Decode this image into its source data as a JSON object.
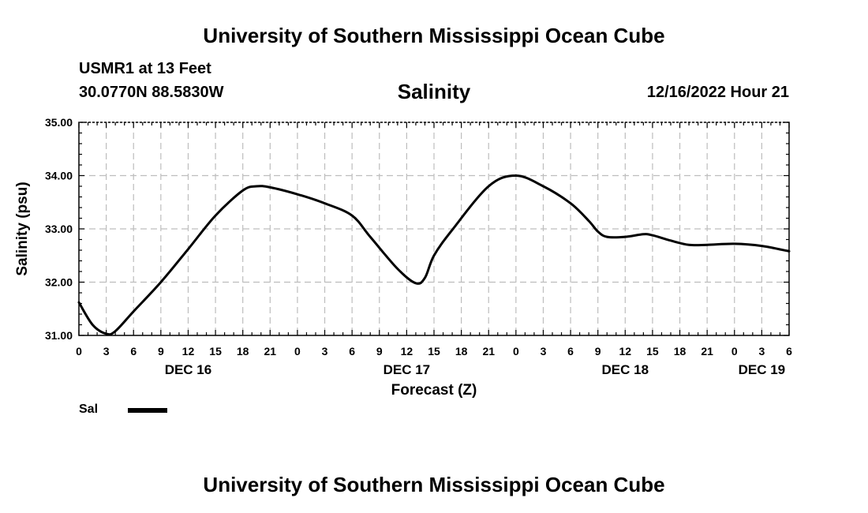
{
  "header": {
    "title": "University of Southern Mississippi Ocean Cube",
    "station": "USMR1 at 13 Feet",
    "coords": "30.0770N  88.5830W",
    "chart_title": "Salinity",
    "forecast_time": "12/16/2022 Hour 21"
  },
  "footer": {
    "title": "University of Southern Mississippi Ocean Cube"
  },
  "legend": {
    "label": "Sal",
    "color": "#000000"
  },
  "chart_data": {
    "type": "line",
    "title": "Salinity",
    "xlabel": "Forecast (Z)",
    "ylabel": "Salinity (psu)",
    "ylim": [
      31.0,
      35.0
    ],
    "yticks": [
      "31.00",
      "32.00",
      "33.00",
      "34.00",
      "35.00"
    ],
    "x_unit": "hours from DEC 16 00Z",
    "xlim": [
      0,
      78
    ],
    "x_tick_labels": [
      "0",
      "3",
      "6",
      "9",
      "12",
      "15",
      "18",
      "21",
      "0",
      "3",
      "6",
      "9",
      "12",
      "15",
      "18",
      "21",
      "0",
      "3",
      "6",
      "9",
      "12",
      "15",
      "18",
      "21",
      "0",
      "3",
      "6"
    ],
    "x_day_labels": [
      {
        "hour": 12,
        "label": "DEC 16"
      },
      {
        "hour": 36,
        "label": "DEC 17"
      },
      {
        "hour": 60,
        "label": "DEC 18"
      },
      {
        "hour": 75,
        "label": "DEC 19"
      }
    ],
    "grid": true,
    "series": [
      {
        "name": "Sal",
        "x": [
          0,
          1.5,
          3,
          4,
          6,
          9,
          12,
          15,
          18,
          19.5,
          21,
          24,
          27,
          30,
          32,
          35,
          37,
          38,
          39,
          41,
          45,
          48,
          51,
          54,
          56,
          57,
          58,
          60,
          62,
          63,
          65,
          67,
          69,
          72,
          75,
          78
        ],
        "y": [
          31.62,
          31.2,
          31.03,
          31.08,
          31.45,
          32.0,
          32.62,
          33.25,
          33.72,
          33.8,
          33.78,
          33.65,
          33.48,
          33.25,
          32.85,
          32.25,
          31.98,
          32.08,
          32.5,
          32.98,
          33.8,
          34.0,
          33.8,
          33.48,
          33.15,
          32.95,
          32.85,
          32.85,
          32.9,
          32.88,
          32.78,
          32.7,
          32.7,
          32.72,
          32.68,
          32.58
        ]
      }
    ]
  }
}
